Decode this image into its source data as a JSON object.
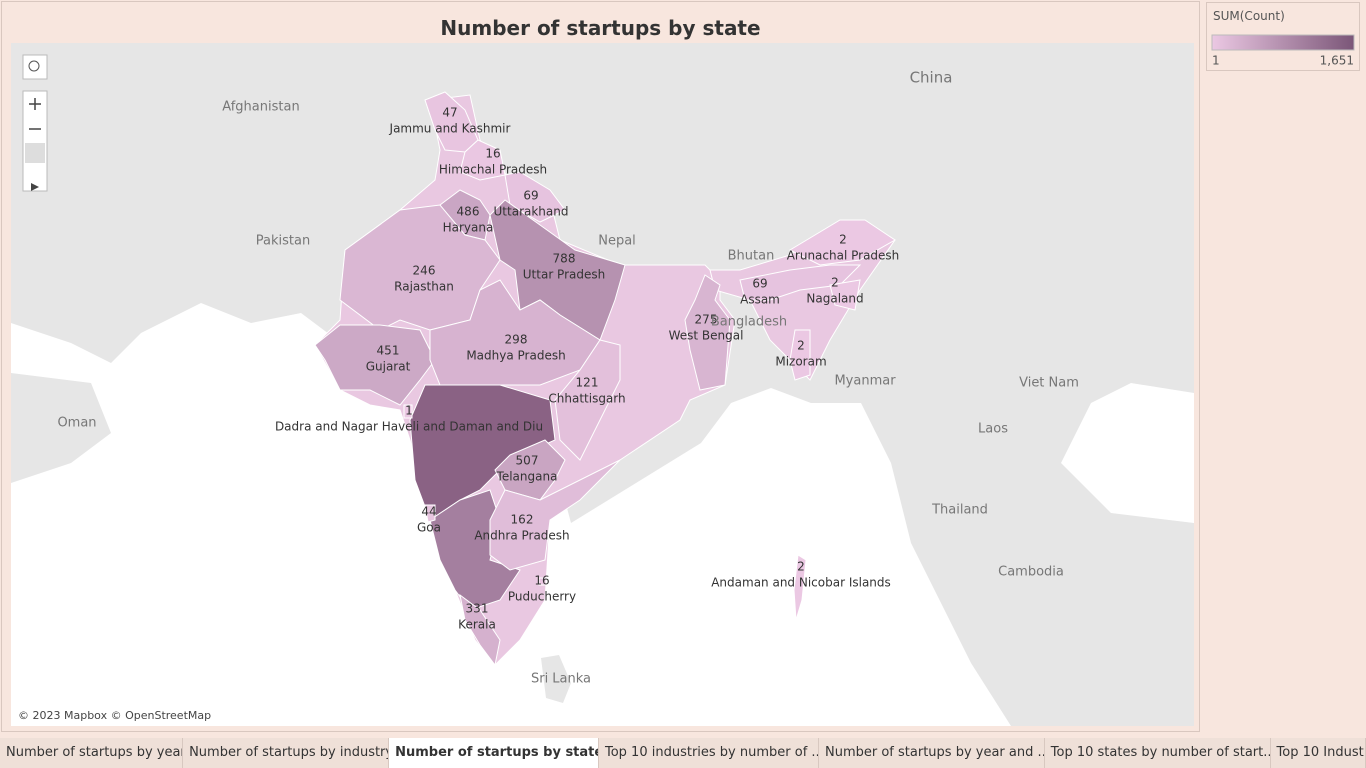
{
  "title": "Number of startups by state",
  "legend": {
    "title": "SUM(Count)",
    "range": [
      1,
      {
        "value": 1651,
        "label": "1,651"
      }
    ],
    "color_low": "#ebc8e3",
    "color_high": "#7b5678"
  },
  "states": [
    {
      "name": "Jammu and Kashmir",
      "value": 47
    },
    {
      "name": "Himachal Pradesh",
      "value": 16
    },
    {
      "name": "Uttarakhand",
      "value": 69
    },
    {
      "name": "Haryana",
      "value": 486
    },
    {
      "name": "Uttar Pradesh",
      "value": 788
    },
    {
      "name": "Rajasthan",
      "value": 246
    },
    {
      "name": "Gujarat",
      "value": 451
    },
    {
      "name": "Madhya Pradesh",
      "value": 298
    },
    {
      "name": "Chhattisgarh",
      "value": 121
    },
    {
      "name": "West Bengal",
      "value": 275
    },
    {
      "name": "Arunachal Pradesh",
      "value": 2
    },
    {
      "name": "Assam",
      "value": 69
    },
    {
      "name": "Nagaland",
      "value": 2
    },
    {
      "name": "Mizoram",
      "value": 2
    },
    {
      "name": "Dadra and Nagar Haveli and Daman and Diu",
      "value": 1
    },
    {
      "name": "Telangana",
      "value": 507
    },
    {
      "name": "Goa",
      "value": 44
    },
    {
      "name": "Andhra Pradesh",
      "value": 162
    },
    {
      "name": "Puducherry",
      "value": 16
    },
    {
      "name": "Kerala",
      "value": 331
    },
    {
      "name": "Andaman and Nicobar Islands",
      "value": 2
    }
  ],
  "countries": [
    "China",
    "Afghanistan",
    "Pakistan",
    "Nepal",
    "Bhutan",
    "Bangladesh",
    "Myanmar",
    "Oman",
    "Viet Nam",
    "Laos",
    "Thailand",
    "Cambodia",
    "Sri Lanka"
  ],
  "attribution": "© 2023 Mapbox © OpenStreetMap",
  "tabs": [
    "Number of startups by year",
    "Number of startups by industry",
    "Number of startups by state",
    "Top 10 industries by number of ...",
    "Number of startups by year and ...",
    "Top 10 states by number of start...",
    "Top 10 Indust"
  ],
  "active_tab": 2
}
